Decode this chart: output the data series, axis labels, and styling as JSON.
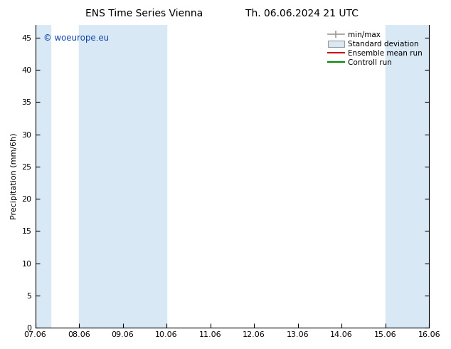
{
  "title": "ENS Time Series Vienna",
  "title2": "Th. 06.06.2024 21 UTC",
  "ylabel": "Precipitation (mm/6h)",
  "xlim": [
    0,
    9
  ],
  "ylim": [
    0,
    47
  ],
  "yticks": [
    0,
    5,
    10,
    15,
    20,
    25,
    30,
    35,
    40,
    45
  ],
  "xtick_labels": [
    "07.06",
    "08.06",
    "09.06",
    "10.06",
    "11.06",
    "12.06",
    "13.06",
    "14.06",
    "15.06",
    "16.06"
  ],
  "xtick_positions": [
    0,
    1,
    2,
    3,
    4,
    5,
    6,
    7,
    8,
    9
  ],
  "shaded_bands": [
    [
      0.0,
      0.35
    ],
    [
      1.0,
      3.0
    ],
    [
      8.0,
      9.0
    ],
    [
      9.0,
      9.35
    ]
  ],
  "band_color": "#d8e8f5",
  "legend_labels": [
    "min/max",
    "Standard deviation",
    "Ensemble mean run",
    "Controll run"
  ],
  "legend_line_color": "#999999",
  "legend_patch_color": "#d8e8f5",
  "legend_red": "#cc0000",
  "legend_green": "#008800",
  "watermark": "© woeurope.eu",
  "watermark_color": "#1144aa",
  "bg_color": "#ffffff",
  "title_fontsize": 10,
  "axis_fontsize": 8,
  "tick_fontsize": 8
}
